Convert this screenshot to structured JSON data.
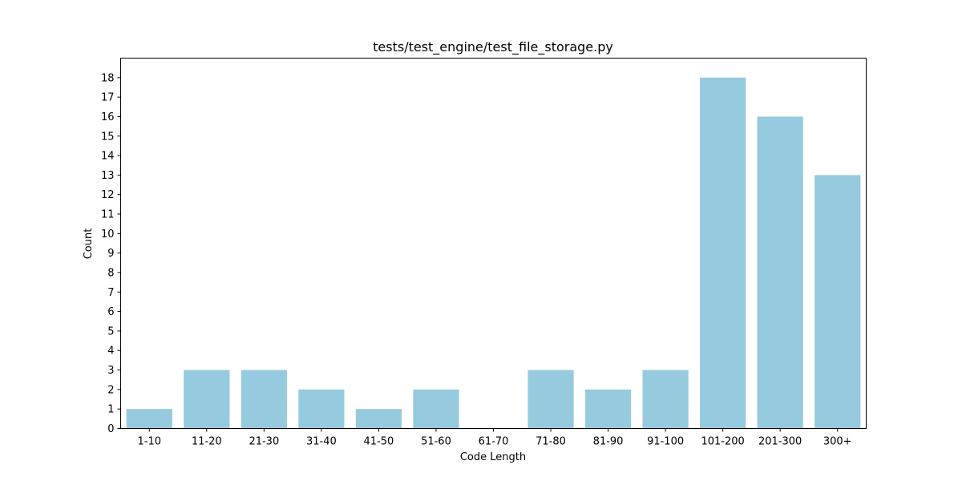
{
  "chart_data": {
    "type": "bar",
    "title": "tests/test_engine/test_file_storage.py",
    "xlabel": "Code Length",
    "ylabel": "Count",
    "categories": [
      "1-10",
      "11-20",
      "21-30",
      "31-40",
      "41-50",
      "51-60",
      "61-70",
      "71-80",
      "81-90",
      "91-100",
      "101-200",
      "201-300",
      "300+"
    ],
    "values": [
      1,
      3,
      3,
      2,
      1,
      2,
      0,
      3,
      2,
      3,
      18,
      16,
      13
    ],
    "ylim": [
      0,
      19
    ],
    "yticks": [
      "0",
      "1",
      "2",
      "3",
      "4",
      "5",
      "6",
      "7",
      "8",
      "9",
      "10",
      "11",
      "12",
      "13",
      "14",
      "15",
      "16",
      "17",
      "18"
    ],
    "grid": false,
    "legend": "none",
    "bar_color": "#96cade"
  }
}
